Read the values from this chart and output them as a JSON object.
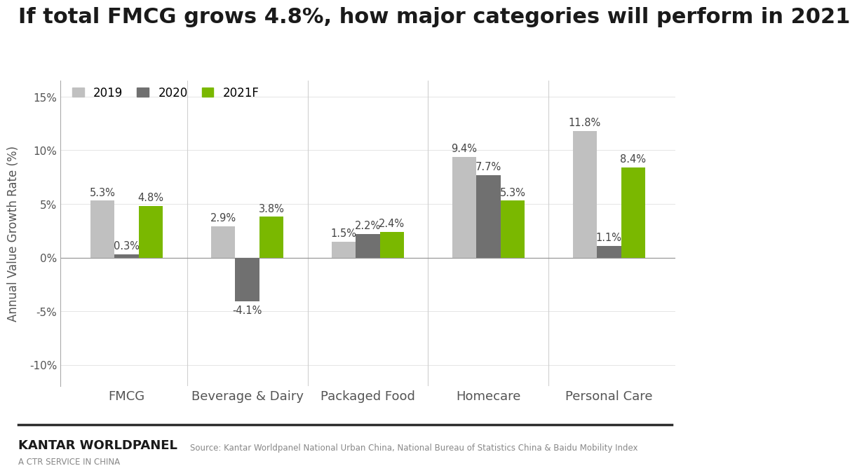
{
  "title": "If total FMCG grows 4.8%, how major categories will perform in 2021",
  "categories": [
    "FMCG",
    "Beverage & Dairy",
    "Packaged Food",
    "Homecare",
    "Personal Care"
  ],
  "series": {
    "2019": [
      5.3,
      2.9,
      1.5,
      9.4,
      11.8
    ],
    "2020": [
      0.3,
      -4.1,
      2.2,
      7.7,
      1.1
    ],
    "2021F": [
      4.8,
      3.8,
      2.4,
      5.3,
      8.4
    ]
  },
  "colors": {
    "2019": "#c0c0c0",
    "2020": "#707070",
    "2021F": "#7ab800"
  },
  "ylabel": "Annual Value Growth Rate (%)",
  "ylim": [
    -12,
    16.5
  ],
  "yticks": [
    -10,
    -5,
    0,
    5,
    10,
    15
  ],
  "legend_labels": [
    "2019",
    "2020",
    "2021F"
  ],
  "background_color": "#ffffff",
  "title_fontsize": 22,
  "bar_label_fontsize": 10.5,
  "footer_brand": "KANTAR WORLDPANEL",
  "footer_sub": "A CTR SERVICE IN CHINA",
  "footer_source": "Source: Kantar Worldpanel National Urban China, National Bureau of Statistics China & Baidu Mobility Index",
  "separator_color": "#2d2d2d",
  "group_width": 0.6
}
